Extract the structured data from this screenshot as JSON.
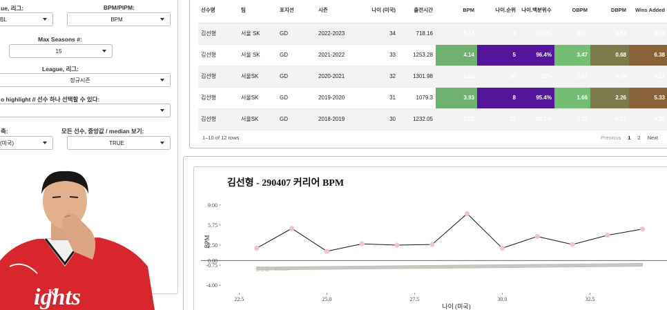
{
  "sidebar": {
    "league_label": "ue, 리그:",
    "league_value": "BL",
    "metric_label": "BPM/PIPM:",
    "metric_value": "BPM",
    "max_seasons_label": "Max Seasons #:",
    "max_seasons_value": "15",
    "league2_label": "League, 리그:",
    "league2_value": "정규시즌",
    "highlight_label": "o highlight // 선수 하나 선택할 수 있다:",
    "highlight_value": "",
    "axis_label": "축:",
    "axis_value": "(미국)",
    "median_label": "모든 선수, 중앙값 / median 보기:",
    "median_value": "TRUE"
  },
  "table": {
    "headers": [
      "선수명",
      "팀",
      "포지션",
      "시즌",
      "나이 (미국)",
      "출전시간",
      "BPM",
      "나이.순위",
      "나이.백분위수",
      "OBPM",
      "DBPM",
      "Wins Added"
    ],
    "rows": [
      [
        "김선형",
        "서울 SK",
        "GD",
        "2022-2023",
        "34",
        "718.16",
        "5.13",
        "3",
        "97.6%",
        "4.60",
        "0.53",
        "4.18"
      ],
      [
        "김선형",
        "서울 SK",
        "GD",
        "2021-2022",
        "33",
        "1253.28",
        "4.14",
        "5",
        "96.4%",
        "3.47",
        "0.68",
        "6.38"
      ],
      [
        "김선형",
        "서울SK",
        "GD",
        "2020-2021",
        "32",
        "1301.98",
        "2.61",
        "10",
        "92%",
        "2.02",
        "0.59",
        "5.11"
      ],
      [
        "김선형",
        "서울SK",
        "GD",
        "2019-2020",
        "31",
        "1079.3",
        "3.93",
        "8",
        "95.4%",
        "1.66",
        "2.26",
        "5.33"
      ],
      [
        "김선형",
        "서울SK",
        "GD",
        "2018-2019",
        "30",
        "1232.05",
        "2.02",
        "22",
        "85.1%",
        "2.25",
        "-0.23",
        "4.26"
      ]
    ],
    "row_info": "1–10 of 12 rows",
    "pager": {
      "previous": "Previous",
      "page1": "1",
      "page2": "2",
      "next": "Next"
    }
  },
  "chart_data": {
    "type": "line",
    "title": "김선형 - 290407 커리어 BPM",
    "xlabel": "나이 (미국)",
    "ylabel": "BPM",
    "xlim": [
      22,
      34.5
    ],
    "ylim": [
      -5,
      10
    ],
    "x_ticks": [
      22.5,
      25.0,
      27.5,
      30.0,
      32.5
    ],
    "x_tick_labels": [
      "22.5",
      "25.0",
      "27.5",
      "30.0",
      "32.5"
    ],
    "y_ticks": [
      -4.0,
      -0.75,
      0.0,
      2.5,
      5.75,
      9.0
    ],
    "y_tick_labels": [
      "-4.00",
      "-0.75",
      "0.00",
      "2.50",
      "5.75",
      "9.00"
    ],
    "series": [
      {
        "name": "",
        "x": [
          23,
          24,
          25,
          26,
          27,
          28,
          29,
          30,
          31,
          32,
          33,
          34
        ],
        "values": [
          2.0,
          5.2,
          1.5,
          2.7,
          2.5,
          2.6,
          7.6,
          2.0,
          3.9,
          2.6,
          4.1,
          5.1
        ]
      }
    ],
    "median_label": "중앙값 / median",
    "median_x": [
      23,
      34
    ],
    "median_values": [
      -1.3,
      -0.7
    ],
    "zero_line": 0,
    "grid": false,
    "colors": {
      "line": "#111111",
      "points": "#f0c4c8",
      "zero": "#d9372a",
      "median": "#c8c8c0"
    }
  }
}
